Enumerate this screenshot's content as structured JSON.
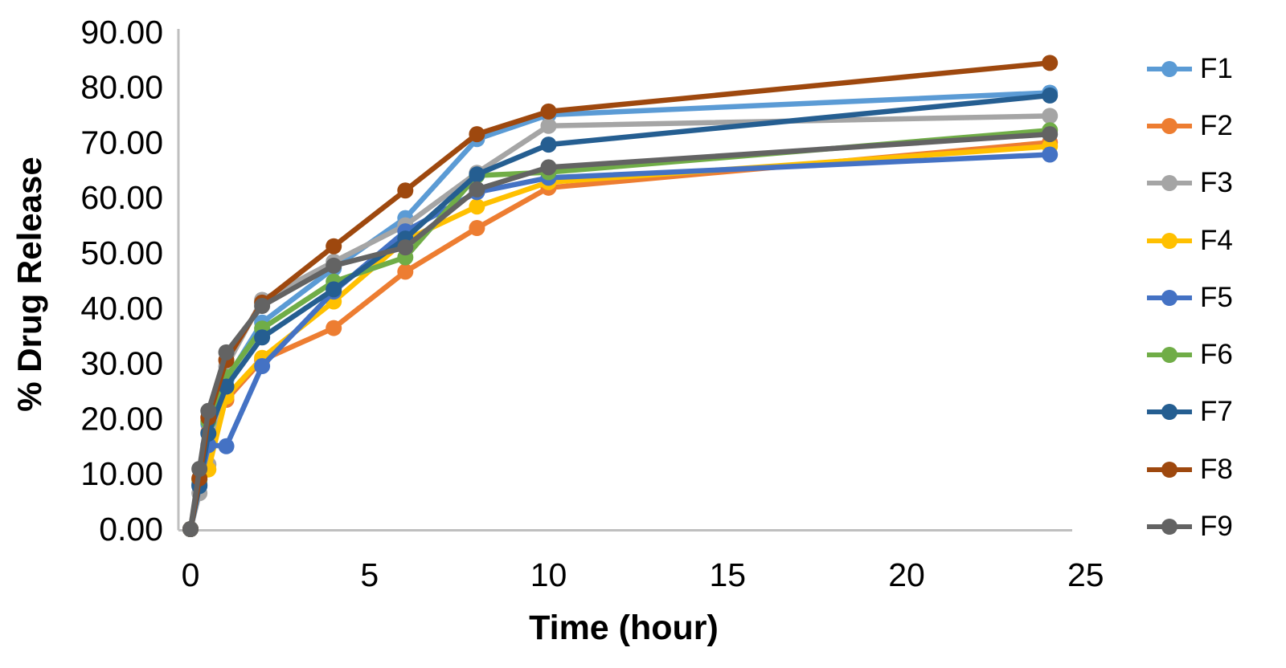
{
  "chart_data": {
    "type": "line",
    "title": "",
    "xlabel": "Time (hour)",
    "ylabel": "% Drug Release",
    "xlim": [
      0,
      25
    ],
    "ylim": [
      0,
      90
    ],
    "grid": false,
    "legend_position": "right",
    "background": "#FFFFFF",
    "axis_line_color": "#BFBFBF",
    "text_color": "#000000",
    "marker": "circle",
    "x_ticks": [
      0,
      5,
      10,
      15,
      20,
      25
    ],
    "x_tick_labels": [
      "0",
      "5",
      "10",
      "15",
      "20",
      "25"
    ],
    "y_ticks": [
      0,
      10,
      20,
      30,
      40,
      50,
      60,
      70,
      80,
      90
    ],
    "y_tick_labels": [
      "0.00",
      "10.00",
      "20.00",
      "30.00",
      "40.00",
      "50.00",
      "60.00",
      "70.00",
      "80.00",
      "90.00"
    ],
    "x": [
      0,
      0.25,
      0.5,
      1,
      2,
      4,
      6,
      8,
      10,
      24
    ],
    "series": [
      {
        "name": "F1",
        "color": "#5B9BD5",
        "values": [
          0,
          8.3,
          19.0,
          27.0,
          37.4,
          47.2,
          56.3,
          70.6,
          75.0,
          79.0
        ]
      },
      {
        "name": "F2",
        "color": "#ED7D31",
        "values": [
          0,
          9.0,
          17.5,
          23.4,
          30.6,
          36.4,
          46.6,
          54.5,
          61.8,
          70.0
        ]
      },
      {
        "name": "F3",
        "color": "#A5A5A5",
        "values": [
          0,
          6.5,
          11.7,
          29.5,
          41.5,
          48.4,
          55.0,
          64.5,
          73.0,
          74.8
        ]
      },
      {
        "name": "F4",
        "color": "#FFC000",
        "values": [
          0,
          8.0,
          10.8,
          24.0,
          31.0,
          41.2,
          52.3,
          58.4,
          62.8,
          69.3
        ]
      },
      {
        "name": "F5",
        "color": "#4472C4",
        "values": [
          0,
          8.0,
          15.2,
          15.0,
          29.5,
          43.0,
          53.9,
          61.0,
          63.6,
          67.8
        ]
      },
      {
        "name": "F6",
        "color": "#70AD47",
        "values": [
          0,
          9.0,
          19.5,
          27.5,
          36.3,
          44.8,
          49.2,
          64.0,
          64.6,
          72.2
        ]
      },
      {
        "name": "F7",
        "color": "#255E91",
        "values": [
          0,
          7.8,
          17.3,
          25.8,
          34.7,
          43.4,
          52.6,
          64.2,
          69.6,
          78.5
        ]
      },
      {
        "name": "F8",
        "color": "#9E480E",
        "values": [
          0,
          9.2,
          20.2,
          30.6,
          41.0,
          51.2,
          61.3,
          71.5,
          75.6,
          84.4
        ]
      },
      {
        "name": "F9",
        "color": "#636363",
        "values": [
          0,
          10.9,
          21.4,
          32.0,
          40.4,
          47.7,
          51.0,
          61.5,
          65.5,
          71.5
        ]
      }
    ]
  }
}
